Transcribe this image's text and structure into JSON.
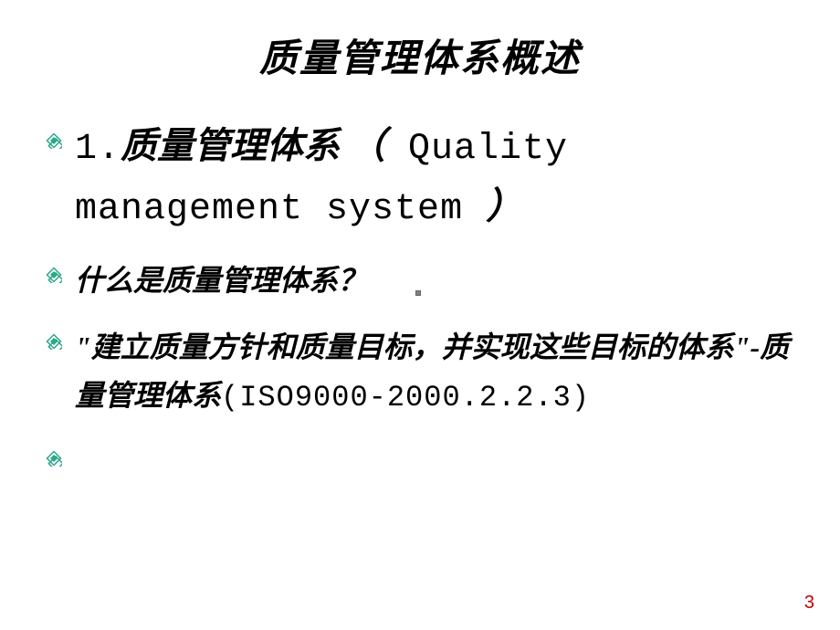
{
  "title": "质量管理体系概述",
  "items": [
    {
      "size": "lg",
      "prefix": "1.",
      "bold": "质量管理体系 （",
      "mono": " Quality management system ",
      "suffix": "）"
    },
    {
      "size": "sm",
      "bold": "什么是质量管理体系？",
      "mono": "",
      "suffix": ""
    },
    {
      "size": "sm",
      "bold": "\"建立质量方针和质量目标，并实现这些目标的体系\"-质量管理体系",
      "mono": "(ISO9000-2000.2.2.3)",
      "suffix": ""
    },
    {
      "size": "sm",
      "bold": "",
      "mono": "",
      "suffix": ""
    }
  ],
  "bullet": {
    "outer_stroke": "#2aa88a",
    "inner_fill": "#2aa88a",
    "bg": "#ffffff"
  },
  "page_number": "3",
  "colors": {
    "text": "#000000",
    "page_num": "#c00000",
    "background": "#ffffff"
  },
  "typography": {
    "title_fontsize": 42,
    "item_lg_fontsize": 40,
    "item_sm_fontsize": 32,
    "font_family_cjk": "STKaiti/KaiTi/SimHei",
    "font_family_mono": "SimSun/Courier"
  }
}
